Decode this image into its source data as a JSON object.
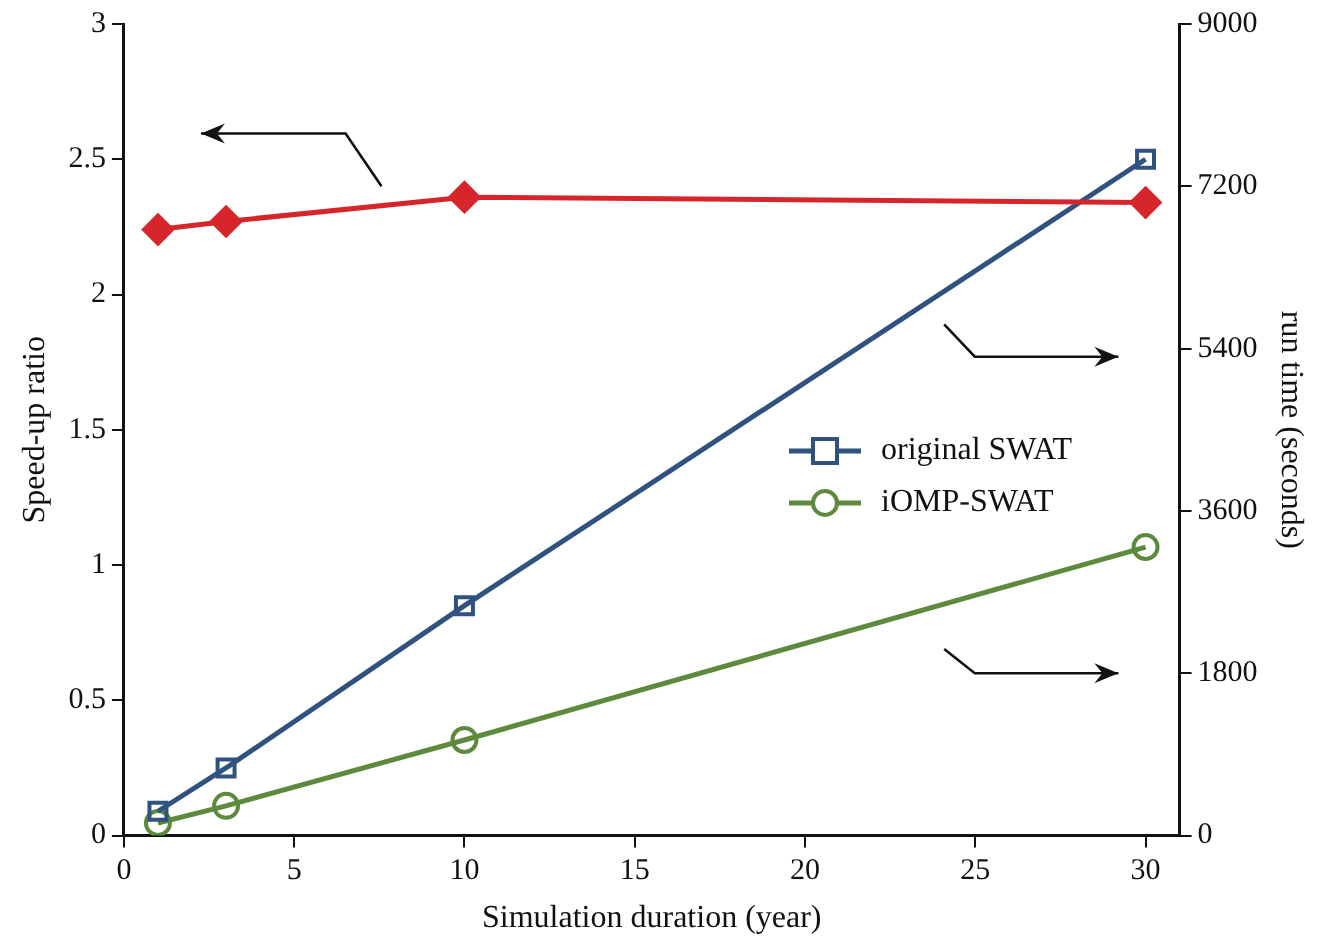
{
  "chart_data": {
    "type": "line",
    "xlabel": "Simulation duration (year)",
    "ylabel": "Speed-up ratio",
    "y2label": "run time (seconds)",
    "x": [
      1,
      3,
      10,
      30
    ],
    "xlim": [
      0,
      31
    ],
    "xticks": [
      0,
      5,
      10,
      15,
      20,
      25,
      30
    ],
    "ylim": [
      0,
      3
    ],
    "yticks": [
      0,
      0.5,
      1,
      1.5,
      2,
      2.5,
      3
    ],
    "y2lim": [
      0,
      9000
    ],
    "y2ticks": [
      0,
      1800,
      3600,
      5400,
      7200,
      9000
    ],
    "series": [
      {
        "color": "#d7262b",
        "values": [
          2.24,
          2.27,
          2.36,
          2.34
        ],
        "marker": "diamond"
      },
      {
        "name": "original SWAT",
        "color": "#2f527f",
        "values": [
          270,
          750,
          2550,
          7500
        ],
        "axis": "y2",
        "marker": "square"
      },
      {
        "name": "iOMP-SWAT",
        "color": "#5e8a3e",
        "values": [
          140,
          330,
          1060,
          3200
        ],
        "axis": "y2",
        "marker": "circle"
      }
    ],
    "legend": "right",
    "grid": false,
    "line_style": "solid"
  }
}
